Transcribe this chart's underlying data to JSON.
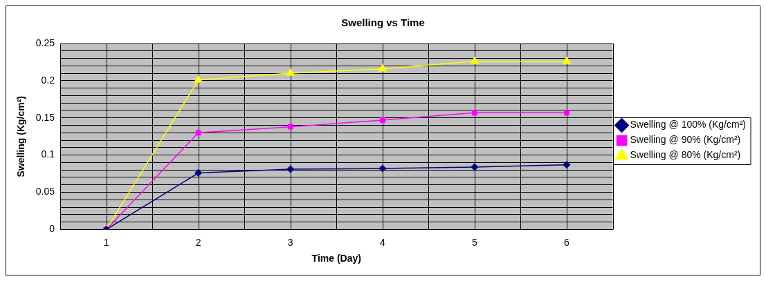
{
  "chart_data": {
    "type": "line",
    "title": "Swelling vs Time",
    "xlabel": "Time (Day)",
    "ylabel": "Swelling (Kg/cm²)",
    "categories": [
      "1",
      "2",
      "3",
      "4",
      "5",
      "6"
    ],
    "series": [
      {
        "name": "Swelling @ 100% (Kg/cm²)",
        "color": "#000080",
        "marker": "diamond",
        "values": [
          0,
          0.076,
          0.081,
          0.082,
          0.084,
          0.087
        ]
      },
      {
        "name": "Swelling @ 90% (Kg/cm²)",
        "color": "#ff00ff",
        "marker": "square",
        "values": [
          0,
          0.13,
          0.138,
          0.147,
          0.157,
          0.157
        ]
      },
      {
        "name": "Swelling @ 80% (Kg/cm²)",
        "color": "#ffff00",
        "marker": "triangle",
        "values": [
          0,
          0.201,
          0.21,
          0.216,
          0.226,
          0.226
        ]
      }
    ],
    "ylim": [
      0,
      0.25
    ],
    "yticks": [
      0,
      {
        "value": 0.01,
        "label": null
      },
      {
        "value": 0.02,
        "label": null
      },
      {
        "value": 0.03,
        "label": null
      },
      {
        "value": 0.04,
        "label": null
      },
      0.05,
      {
        "value": 0.06,
        "label": null
      },
      {
        "value": 0.07,
        "label": null
      },
      {
        "value": 0.08,
        "label": null
      },
      {
        "value": 0.09,
        "label": null
      },
      0.1,
      {
        "value": 0.11,
        "label": null
      },
      {
        "value": 0.12,
        "label": null
      },
      {
        "value": 0.13,
        "label": null
      },
      {
        "value": 0.14,
        "label": null
      },
      0.15,
      {
        "value": 0.16,
        "label": null
      },
      {
        "value": 0.17,
        "label": null
      },
      {
        "value": 0.18,
        "label": null
      },
      {
        "value": 0.19,
        "label": null
      },
      0.2,
      {
        "value": 0.21,
        "label": null
      },
      {
        "value": 0.22,
        "label": null
      },
      {
        "value": 0.23,
        "label": null
      },
      {
        "value": 0.24,
        "label": null
      },
      0.25
    ],
    "grid": true,
    "legend": "right",
    "line_style": "solid"
  }
}
